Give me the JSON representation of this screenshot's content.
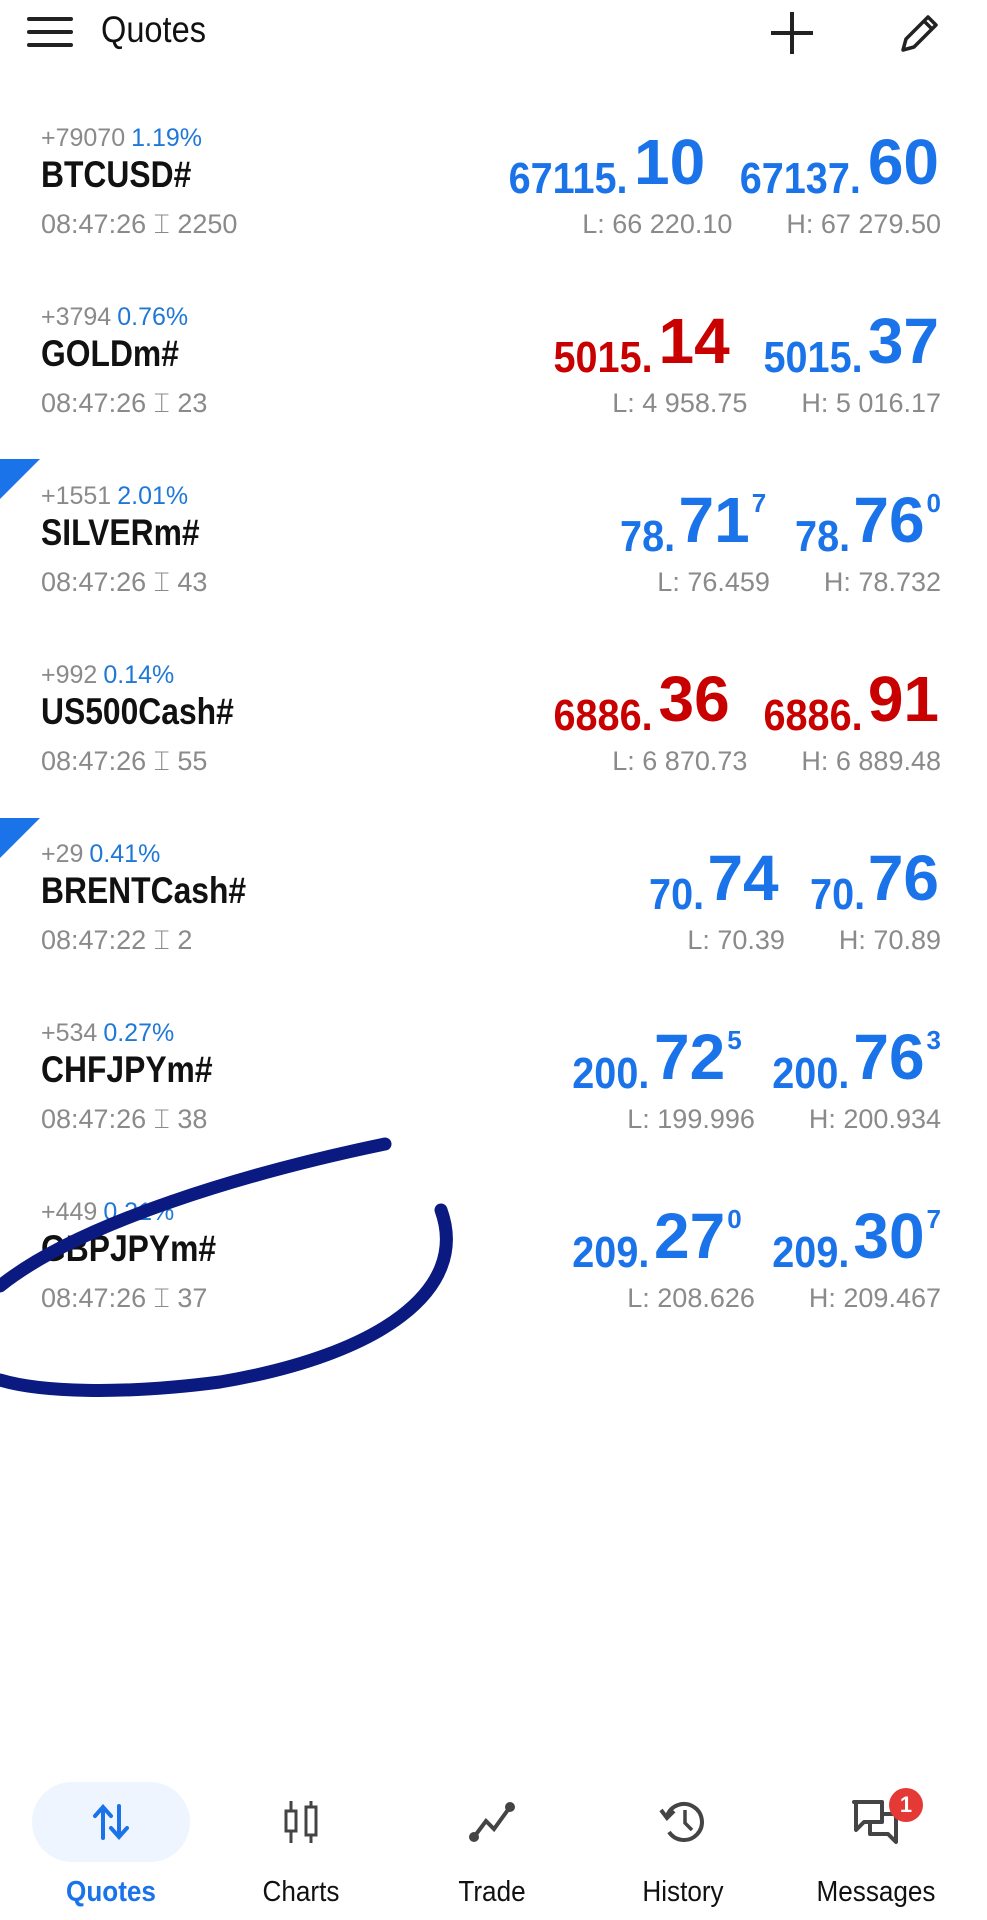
{
  "header": {
    "title": "Quotes",
    "menu_icon": "hamburger-icon",
    "add_icon": "plus-icon",
    "edit_icon": "pencil-icon"
  },
  "colors": {
    "up": "#1a73e8",
    "down": "#c80000",
    "annotation": "#0a1a80"
  },
  "quotes": [
    {
      "change": "+79070",
      "pct": "1.19%",
      "symbol": "BTCUSD#",
      "time": "08:47:26",
      "spread": "2250",
      "bid": {
        "s": "67115.",
        "b": "10",
        "sup": "",
        "color": "blue"
      },
      "ask": {
        "s": "67137.",
        "b": "60",
        "sup": "",
        "color": "blue"
      },
      "low": "L: 66 220.10",
      "high": "H: 67 279.50"
    },
    {
      "change": "+3794",
      "pct": "0.76%",
      "symbol": "GOLDm#",
      "time": "08:47:26",
      "spread": "23",
      "bid": {
        "s": "5015.",
        "b": "14",
        "sup": "",
        "color": "red"
      },
      "ask": {
        "s": "5015.",
        "b": "37",
        "sup": "",
        "color": "blue"
      },
      "low": "L: 4 958.75",
      "high": "H: 5 016.17"
    },
    {
      "change": "+1551",
      "pct": "2.01%",
      "symbol": "SILVERm#",
      "time": "08:47:26",
      "spread": "43",
      "bid": {
        "s": "78.",
        "b": "71",
        "sup": "7",
        "color": "blue"
      },
      "ask": {
        "s": "78.",
        "b": "76",
        "sup": "0",
        "color": "blue"
      },
      "low": "L: 76.459",
      "high": "H: 78.732"
    },
    {
      "change": "+992",
      "pct": "0.14%",
      "symbol": "US500Cash#",
      "time": "08:47:26",
      "spread": "55",
      "bid": {
        "s": "6886.",
        "b": "36",
        "sup": "",
        "color": "red"
      },
      "ask": {
        "s": "6886.",
        "b": "91",
        "sup": "",
        "color": "red"
      },
      "low": "L: 6 870.73",
      "high": "H: 6 889.48"
    },
    {
      "change": "+29",
      "pct": "0.41%",
      "symbol": "BRENTCash#",
      "time": "08:47:22",
      "spread": "2",
      "bid": {
        "s": "70.",
        "b": "74",
        "sup": "",
        "color": "blue"
      },
      "ask": {
        "s": "70.",
        "b": "76",
        "sup": "",
        "color": "blue"
      },
      "low": "L: 70.39",
      "high": "H: 70.89"
    },
    {
      "change": "+534",
      "pct": "0.27%",
      "symbol": "CHFJPYm#",
      "time": "08:47:26",
      "spread": "38",
      "bid": {
        "s": "200.",
        "b": "72",
        "sup": "5",
        "color": "blue"
      },
      "ask": {
        "s": "200.",
        "b": "76",
        "sup": "3",
        "color": "blue"
      },
      "low": "L: 199.996",
      "high": "H: 200.934"
    },
    {
      "change": "+449",
      "pct": "0.21%",
      "symbol": "GBPJPYm#",
      "time": "08:47:26",
      "spread": "37",
      "bid": {
        "s": "209.",
        "b": "27",
        "sup": "0",
        "color": "blue"
      },
      "ask": {
        "s": "209.",
        "b": "30",
        "sup": "7",
        "color": "blue"
      },
      "low": "L: 208.626",
      "high": "H: 209.467"
    }
  ],
  "nav": [
    {
      "label": "Quotes",
      "icon": "arrows-updown-icon",
      "active": true
    },
    {
      "label": "Charts",
      "icon": "candlestick-icon"
    },
    {
      "label": "Trade",
      "icon": "trade-line-icon"
    },
    {
      "label": "History",
      "icon": "history-icon"
    },
    {
      "label": "Messages",
      "icon": "chat-icon",
      "badge": "1"
    }
  ]
}
